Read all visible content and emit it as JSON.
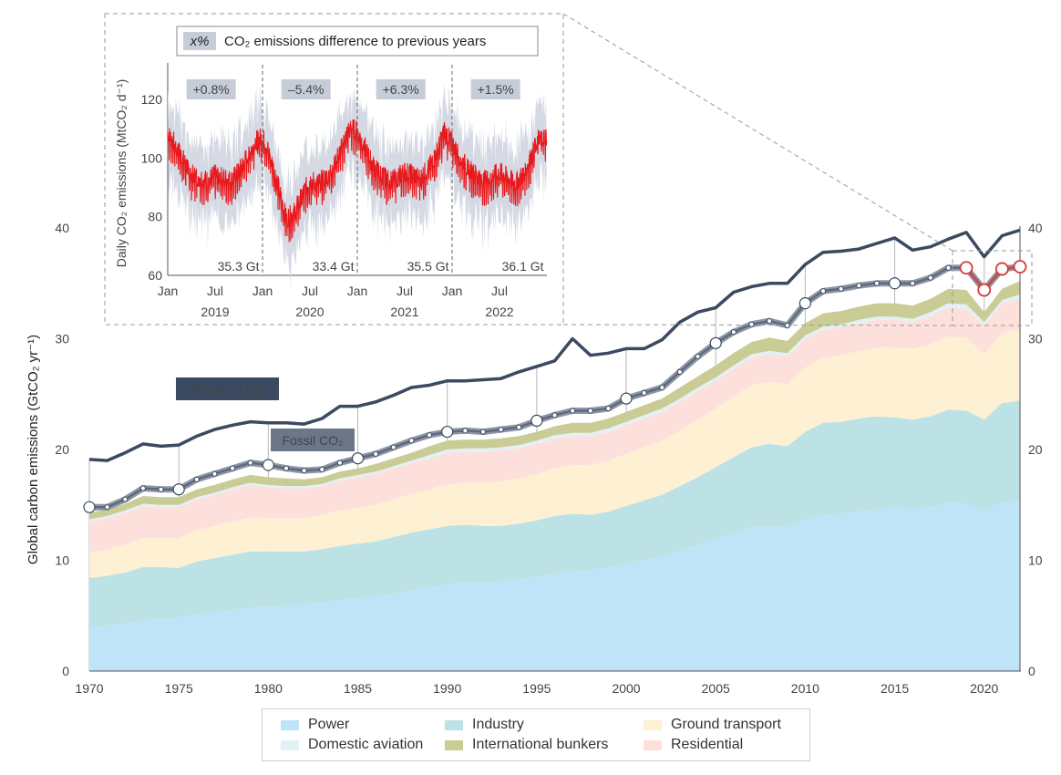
{
  "chart_data": [
    {
      "type": "area",
      "ylabel": "Global carbon emissions (GtCO₂ yr⁻¹)",
      "ylim": [
        0,
        40
      ],
      "xlim": [
        1970,
        2022
      ],
      "yticks": [
        0,
        10,
        20,
        30,
        40
      ],
      "xticks": [
        1970,
        1975,
        1980,
        1985,
        1990,
        1995,
        2000,
        2005,
        2010,
        2015,
        2020
      ],
      "grid": "vertical lines every 5 years",
      "stack_order": [
        "Power",
        "Industry",
        "Ground transport",
        "Residential",
        "Domestic aviation",
        "International bunkers"
      ],
      "series_colors": {
        "Power": "#bfe4f8",
        "Industry": "#bde2e5",
        "Ground transport": "#fdf0d3",
        "Residential": "#fde0dc",
        "Domestic aviation": "#e3f1f7",
        "International bunkers": "#c9cc95"
      },
      "years_sector": [
        1970,
        1971,
        1972,
        1973,
        1974,
        1975,
        1976,
        1977,
        1978,
        1979,
        1980,
        1981,
        1982,
        1983,
        1984,
        1985,
        1986,
        1987,
        1988,
        1989,
        1990,
        1991,
        1992,
        1993,
        1994,
        1995,
        1996,
        1997,
        1998,
        1999,
        2000,
        2001,
        2002,
        2003,
        2004,
        2005,
        2006,
        2007,
        2008,
        2009,
        2010,
        2011,
        2012,
        2013,
        2014,
        2015,
        2016,
        2017,
        2018,
        2019,
        2020,
        2021,
        2022
      ],
      "series": [
        {
          "name": "Power",
          "values": [
            3.9,
            4.1,
            4.3,
            4.6,
            4.7,
            4.8,
            5.1,
            5.3,
            5.5,
            5.7,
            5.8,
            5.9,
            6.0,
            6.2,
            6.4,
            6.6,
            6.7,
            7.0,
            7.3,
            7.6,
            7.8,
            8.0,
            8.0,
            8.1,
            8.3,
            8.5,
            8.8,
            9.0,
            9.1,
            9.3,
            9.7,
            10.0,
            10.3,
            10.9,
            11.4,
            12.0,
            12.5,
            13.0,
            13.1,
            12.9,
            13.7,
            14.1,
            14.2,
            14.4,
            14.6,
            14.7,
            14.6,
            14.8,
            15.2,
            15.1,
            14.4,
            15.2,
            15.5
          ]
        },
        {
          "name": "Industry",
          "values": [
            4.5,
            4.5,
            4.6,
            4.8,
            4.7,
            4.5,
            4.8,
            4.9,
            5.0,
            5.1,
            5.0,
            4.9,
            4.8,
            4.8,
            4.9,
            4.9,
            5.0,
            5.1,
            5.2,
            5.2,
            5.3,
            5.2,
            5.1,
            5.0,
            5.0,
            5.1,
            5.2,
            5.2,
            5.0,
            5.1,
            5.2,
            5.4,
            5.6,
            5.8,
            6.1,
            6.4,
            6.8,
            7.2,
            7.4,
            7.4,
            7.9,
            8.3,
            8.3,
            8.4,
            8.4,
            8.2,
            8.1,
            8.2,
            8.4,
            8.4,
            8.3,
            9.0,
            8.9
          ]
        },
        {
          "name": "Ground transport",
          "values": [
            2.3,
            2.4,
            2.5,
            2.6,
            2.6,
            2.7,
            2.8,
            2.9,
            3.0,
            3.1,
            3.0,
            3.0,
            3.0,
            3.1,
            3.2,
            3.2,
            3.3,
            3.4,
            3.5,
            3.6,
            3.8,
            3.8,
            3.9,
            4.0,
            4.1,
            4.2,
            4.3,
            4.4,
            4.5,
            4.6,
            4.7,
            4.8,
            4.9,
            5.0,
            5.2,
            5.3,
            5.5,
            5.6,
            5.6,
            5.6,
            5.8,
            5.9,
            6.0,
            6.1,
            6.2,
            6.3,
            6.4,
            6.5,
            6.6,
            6.6,
            5.9,
            6.3,
            6.5
          ]
        },
        {
          "name": "Residential",
          "values": [
            2.8,
            2.8,
            2.9,
            2.9,
            2.8,
            2.8,
            2.8,
            2.8,
            2.9,
            2.9,
            2.8,
            2.7,
            2.7,
            2.6,
            2.7,
            2.8,
            2.8,
            2.8,
            2.8,
            2.8,
            2.8,
            2.8,
            2.8,
            2.8,
            2.7,
            2.7,
            2.7,
            2.6,
            2.6,
            2.6,
            2.6,
            2.6,
            2.6,
            2.6,
            2.6,
            2.5,
            2.5,
            2.5,
            2.5,
            2.5,
            2.6,
            2.5,
            2.5,
            2.5,
            2.5,
            2.5,
            2.4,
            2.5,
            2.6,
            2.6,
            2.6,
            2.7,
            2.7
          ]
        },
        {
          "name": "Domestic aviation",
          "values": [
            0.2,
            0.2,
            0.2,
            0.2,
            0.2,
            0.2,
            0.2,
            0.2,
            0.2,
            0.2,
            0.2,
            0.2,
            0.2,
            0.2,
            0.2,
            0.2,
            0.2,
            0.2,
            0.2,
            0.3,
            0.3,
            0.3,
            0.3,
            0.3,
            0.3,
            0.3,
            0.3,
            0.3,
            0.3,
            0.3,
            0.3,
            0.3,
            0.3,
            0.3,
            0.3,
            0.3,
            0.3,
            0.3,
            0.3,
            0.3,
            0.3,
            0.3,
            0.3,
            0.3,
            0.3,
            0.3,
            0.3,
            0.4,
            0.4,
            0.4,
            0.3,
            0.3,
            0.4
          ]
        },
        {
          "name": "International bunkers",
          "values": [
            0.6,
            0.6,
            0.6,
            0.7,
            0.7,
            0.7,
            0.7,
            0.7,
            0.7,
            0.7,
            0.7,
            0.7,
            0.6,
            0.6,
            0.6,
            0.6,
            0.7,
            0.7,
            0.7,
            0.8,
            0.8,
            0.8,
            0.8,
            0.8,
            0.8,
            0.8,
            0.8,
            0.9,
            0.9,
            0.9,
            0.9,
            0.9,
            0.9,
            1.0,
            1.0,
            1.1,
            1.1,
            1.1,
            1.2,
            1.1,
            1.1,
            1.2,
            1.2,
            1.2,
            1.2,
            1.2,
            1.2,
            1.2,
            1.3,
            1.3,
            0.9,
            1.0,
            1.2
          ]
        }
      ],
      "fossil_co2": {
        "name": "Fossil CO₂",
        "label": "Fossil CO₂",
        "years": [
          1970,
          1971,
          1972,
          1973,
          1974,
          1975,
          1976,
          1977,
          1978,
          1979,
          1980,
          1981,
          1982,
          1983,
          1984,
          1985,
          1986,
          1987,
          1988,
          1989,
          1990,
          1991,
          1992,
          1993,
          1994,
          1995,
          1996,
          1997,
          1998,
          1999,
          2000,
          2001,
          2002,
          2003,
          2004,
          2005,
          2006,
          2007,
          2008,
          2009,
          2010,
          2011,
          2012,
          2013,
          2014,
          2015,
          2016,
          2017,
          2018,
          2019,
          2020,
          2021,
          2022
        ],
        "values": [
          14.8,
          14.8,
          15.5,
          16.5,
          16.4,
          16.4,
          17.3,
          17.8,
          18.3,
          18.8,
          18.6,
          18.3,
          18.1,
          18.2,
          18.8,
          19.2,
          19.6,
          20.2,
          20.8,
          21.3,
          21.6,
          21.7,
          21.6,
          21.8,
          22.0,
          22.6,
          23.1,
          23.5,
          23.5,
          23.7,
          24.6,
          25.1,
          25.6,
          27.0,
          28.4,
          29.6,
          30.6,
          31.3,
          31.6,
          31.2,
          33.2,
          34.3,
          34.5,
          34.8,
          35.0,
          35.0,
          35.0,
          35.5,
          36.4,
          36.4,
          34.4,
          36.3,
          36.5
        ],
        "large_markers": [
          1970,
          1975,
          1980,
          1985,
          1990,
          1995,
          2000,
          2005,
          2010,
          2015
        ],
        "highlight_years": [
          2019,
          2020,
          2021,
          2022
        ]
      },
      "fossil_luc": {
        "name": "Fossil + LUC",
        "label": "Fossil + LUC",
        "years": [
          1970,
          1971,
          1972,
          1973,
          1974,
          1975,
          1976,
          1977,
          1978,
          1979,
          1980,
          1981,
          1982,
          1983,
          1984,
          1985,
          1986,
          1987,
          1988,
          1989,
          1990,
          1991,
          1992,
          1993,
          1994,
          1995,
          1996,
          1997,
          1998,
          1999,
          2000,
          2001,
          2002,
          2003,
          2004,
          2005,
          2006,
          2007,
          2008,
          2009,
          2010,
          2011,
          2012,
          2013,
          2014,
          2015,
          2016,
          2017,
          2018,
          2019,
          2020,
          2021,
          2022
        ],
        "values": [
          19.1,
          19.0,
          19.7,
          20.5,
          20.3,
          20.4,
          21.2,
          21.8,
          22.2,
          22.5,
          22.4,
          22.4,
          22.3,
          22.8,
          23.9,
          23.9,
          24.3,
          24.9,
          25.6,
          25.8,
          26.2,
          26.2,
          26.3,
          26.4,
          27.0,
          27.5,
          28.0,
          30.0,
          28.5,
          28.7,
          29.1,
          29.1,
          29.9,
          31.5,
          32.4,
          32.8,
          34.2,
          34.7,
          35.0,
          35.0,
          36.7,
          37.8,
          37.9,
          38.1,
          38.6,
          39.1,
          38.0,
          38.3,
          39.0,
          39.6,
          37.4,
          39.3,
          39.8
        ]
      }
    },
    {
      "type": "line",
      "title": "CO₂ emissions difference to previous years",
      "legend_symbol": "x%",
      "ylabel": "Daily CO₂ emissions (MtCO₂ d⁻¹)",
      "ylim": [
        60,
        130
      ],
      "yticks": [
        60,
        80,
        100,
        120
      ],
      "xtick_labels": [
        "Jan",
        "Jul",
        "Jan",
        "Jul",
        "Jan",
        "Jul",
        "Jan",
        "Jul"
      ],
      "year_labels": [
        "2019",
        "2020",
        "2021",
        "2022"
      ],
      "line_color": "#e8191c",
      "band_color": "#d4d9e3",
      "annual_changes": [
        "+0.8%",
        "–5.4%",
        "+6.3%",
        "+1.5%"
      ],
      "annual_totals": [
        "35.3 Gt",
        "33.4 Gt",
        "35.5 Gt",
        "36.1 Gt"
      ],
      "monthly_mean": [
        [
          107,
          103,
          98,
          93,
          92,
          91,
          93,
          92,
          91,
          94,
          99,
          104
        ],
        [
          106,
          99,
          89,
          78,
          80,
          86,
          91,
          90,
          92,
          96,
          102,
          109
        ],
        [
          108,
          102,
          96,
          93,
          91,
          92,
          94,
          93,
          92,
          95,
          100,
          108
        ],
        [
          104,
          99,
          95,
          93,
          91,
          92,
          94,
          92,
          90,
          93,
          99,
          106
        ]
      ]
    }
  ],
  "legend": {
    "items": [
      {
        "label": "Power",
        "color": "#bfe4f8"
      },
      {
        "label": "Domestic aviation",
        "color": "#e3f1f7"
      },
      {
        "label": "Industry",
        "color": "#bde2e5"
      },
      {
        "label": "International bunkers",
        "color": "#c9cc95"
      },
      {
        "label": "Ground transport",
        "color": "#fdf0d3"
      },
      {
        "label": "Residential",
        "color": "#fde0dc"
      }
    ]
  }
}
